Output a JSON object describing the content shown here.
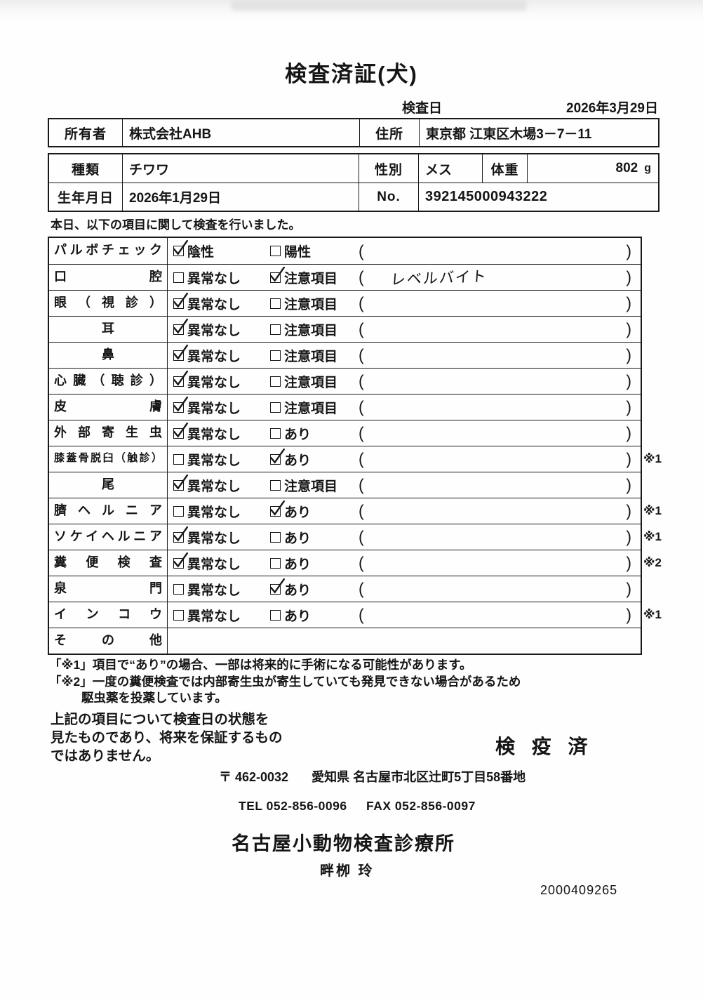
{
  "title": "検査済証(犬)",
  "exam_date": {
    "label": "検査日",
    "value": "2026年3月29日"
  },
  "owner_row": {
    "owner_label": "所有者",
    "owner_value": "株式会社AHB",
    "address_label": "住所",
    "address_value": "東京都 江東区木場3－7－11"
  },
  "pet_rows": {
    "species_label": "種類",
    "species_value": "チワワ",
    "sex_label": "性別",
    "sex_value": "メス",
    "weight_label": "体重",
    "weight_value": "802",
    "weight_unit": "g",
    "birth_label": "生年月日",
    "birth_value": "2026年1月29日",
    "no_label": "No.",
    "no_value": "392145000943222"
  },
  "intro": "本日、以下の項目に関して検査を行いました。",
  "checklist": {
    "rows": [
      {
        "label": "パルボチェック",
        "align": "justify",
        "options": [
          {
            "text": "陰性",
            "checked": true
          },
          {
            "text": "陽性",
            "checked": false
          }
        ],
        "paren_note": "",
        "ref": ""
      },
      {
        "label": "口腔",
        "align": "justify",
        "options": [
          {
            "text": "異常なし",
            "checked": false
          },
          {
            "text": "注意項目",
            "checked": true
          }
        ],
        "paren_note": "レベルバイト",
        "ref": ""
      },
      {
        "label": "眼（視診）",
        "align": "justify",
        "options": [
          {
            "text": "異常なし",
            "checked": true
          },
          {
            "text": "注意項目",
            "checked": false
          }
        ],
        "paren_note": "",
        "ref": ""
      },
      {
        "label": "耳",
        "align": "center",
        "options": [
          {
            "text": "異常なし",
            "checked": true
          },
          {
            "text": "注意項目",
            "checked": false
          }
        ],
        "paren_note": "",
        "ref": ""
      },
      {
        "label": "鼻",
        "align": "center",
        "options": [
          {
            "text": "異常なし",
            "checked": true
          },
          {
            "text": "注意項目",
            "checked": false
          }
        ],
        "paren_note": "",
        "ref": ""
      },
      {
        "label": "心臓（聴診）",
        "align": "justify",
        "options": [
          {
            "text": "異常なし",
            "checked": true
          },
          {
            "text": "注意項目",
            "checked": false
          }
        ],
        "paren_note": "",
        "ref": ""
      },
      {
        "label": "皮膚",
        "align": "justify",
        "options": [
          {
            "text": "異常なし",
            "checked": true
          },
          {
            "text": "注意項目",
            "checked": false
          }
        ],
        "paren_note": "",
        "ref": ""
      },
      {
        "label": "外部寄生虫",
        "align": "justify",
        "options": [
          {
            "text": "異常なし",
            "checked": true
          },
          {
            "text": "あり",
            "checked": false
          }
        ],
        "paren_note": "",
        "ref": ""
      },
      {
        "label": "膝蓋骨脱臼（触診）",
        "align": "justify",
        "options": [
          {
            "text": "異常なし",
            "checked": false
          },
          {
            "text": "あり",
            "checked": true
          }
        ],
        "paren_note": "",
        "ref": "※1"
      },
      {
        "label": "尾",
        "align": "center",
        "options": [
          {
            "text": "異常なし",
            "checked": true
          },
          {
            "text": "注意項目",
            "checked": false
          }
        ],
        "paren_note": "",
        "ref": ""
      },
      {
        "label": "臍ヘルニア",
        "align": "justify",
        "options": [
          {
            "text": "異常なし",
            "checked": false
          },
          {
            "text": "あり",
            "checked": true
          }
        ],
        "paren_note": "",
        "ref": "※1"
      },
      {
        "label": "ソケイヘルニア",
        "align": "justify",
        "options": [
          {
            "text": "異常なし",
            "checked": true
          },
          {
            "text": "あり",
            "checked": false
          }
        ],
        "paren_note": "",
        "ref": "※1"
      },
      {
        "label": "糞便検査",
        "align": "justify",
        "options": [
          {
            "text": "異常なし",
            "checked": true
          },
          {
            "text": "あり",
            "checked": false
          }
        ],
        "paren_note": "",
        "ref": "※2"
      },
      {
        "label": "泉門",
        "align": "justify",
        "options": [
          {
            "text": "異常なし",
            "checked": false
          },
          {
            "text": "あり",
            "checked": true
          }
        ],
        "paren_note": "",
        "ref": ""
      },
      {
        "label": "インコウ",
        "align": "justify",
        "options": [
          {
            "text": "異常なし",
            "checked": false
          },
          {
            "text": "あり",
            "checked": false
          }
        ],
        "paren_note": "",
        "ref": "※1"
      },
      {
        "label": "その他",
        "align": "justify",
        "options": [],
        "paren_note": "",
        "ref": ""
      }
    ]
  },
  "notes": {
    "line1": "「※1」項目で“あり”の場合、一部は将来的に手術になる可能性があります。",
    "line2": "「※2」一度の糞便検査では内部寄生虫が寄生していても発見できない場合があるため",
    "line3": "駆虫薬を投薬しています。"
  },
  "disclaimer": {
    "line1": "上記の項目について検査日の状態を",
    "line2": "見たものであり、将来を保証するもの",
    "line3": "ではありません。"
  },
  "stamp": "検 疫 済",
  "clinic": {
    "postal": "〒 462-0032",
    "address": "愛知県 名古屋市北区辻町5丁目58番地",
    "tel": "TEL 052-856-0096",
    "fax": "FAX 052-856-0097",
    "name": "名古屋小動物検査診療所",
    "veterinarian": "畔栁 玲"
  },
  "serial": "2000409265"
}
